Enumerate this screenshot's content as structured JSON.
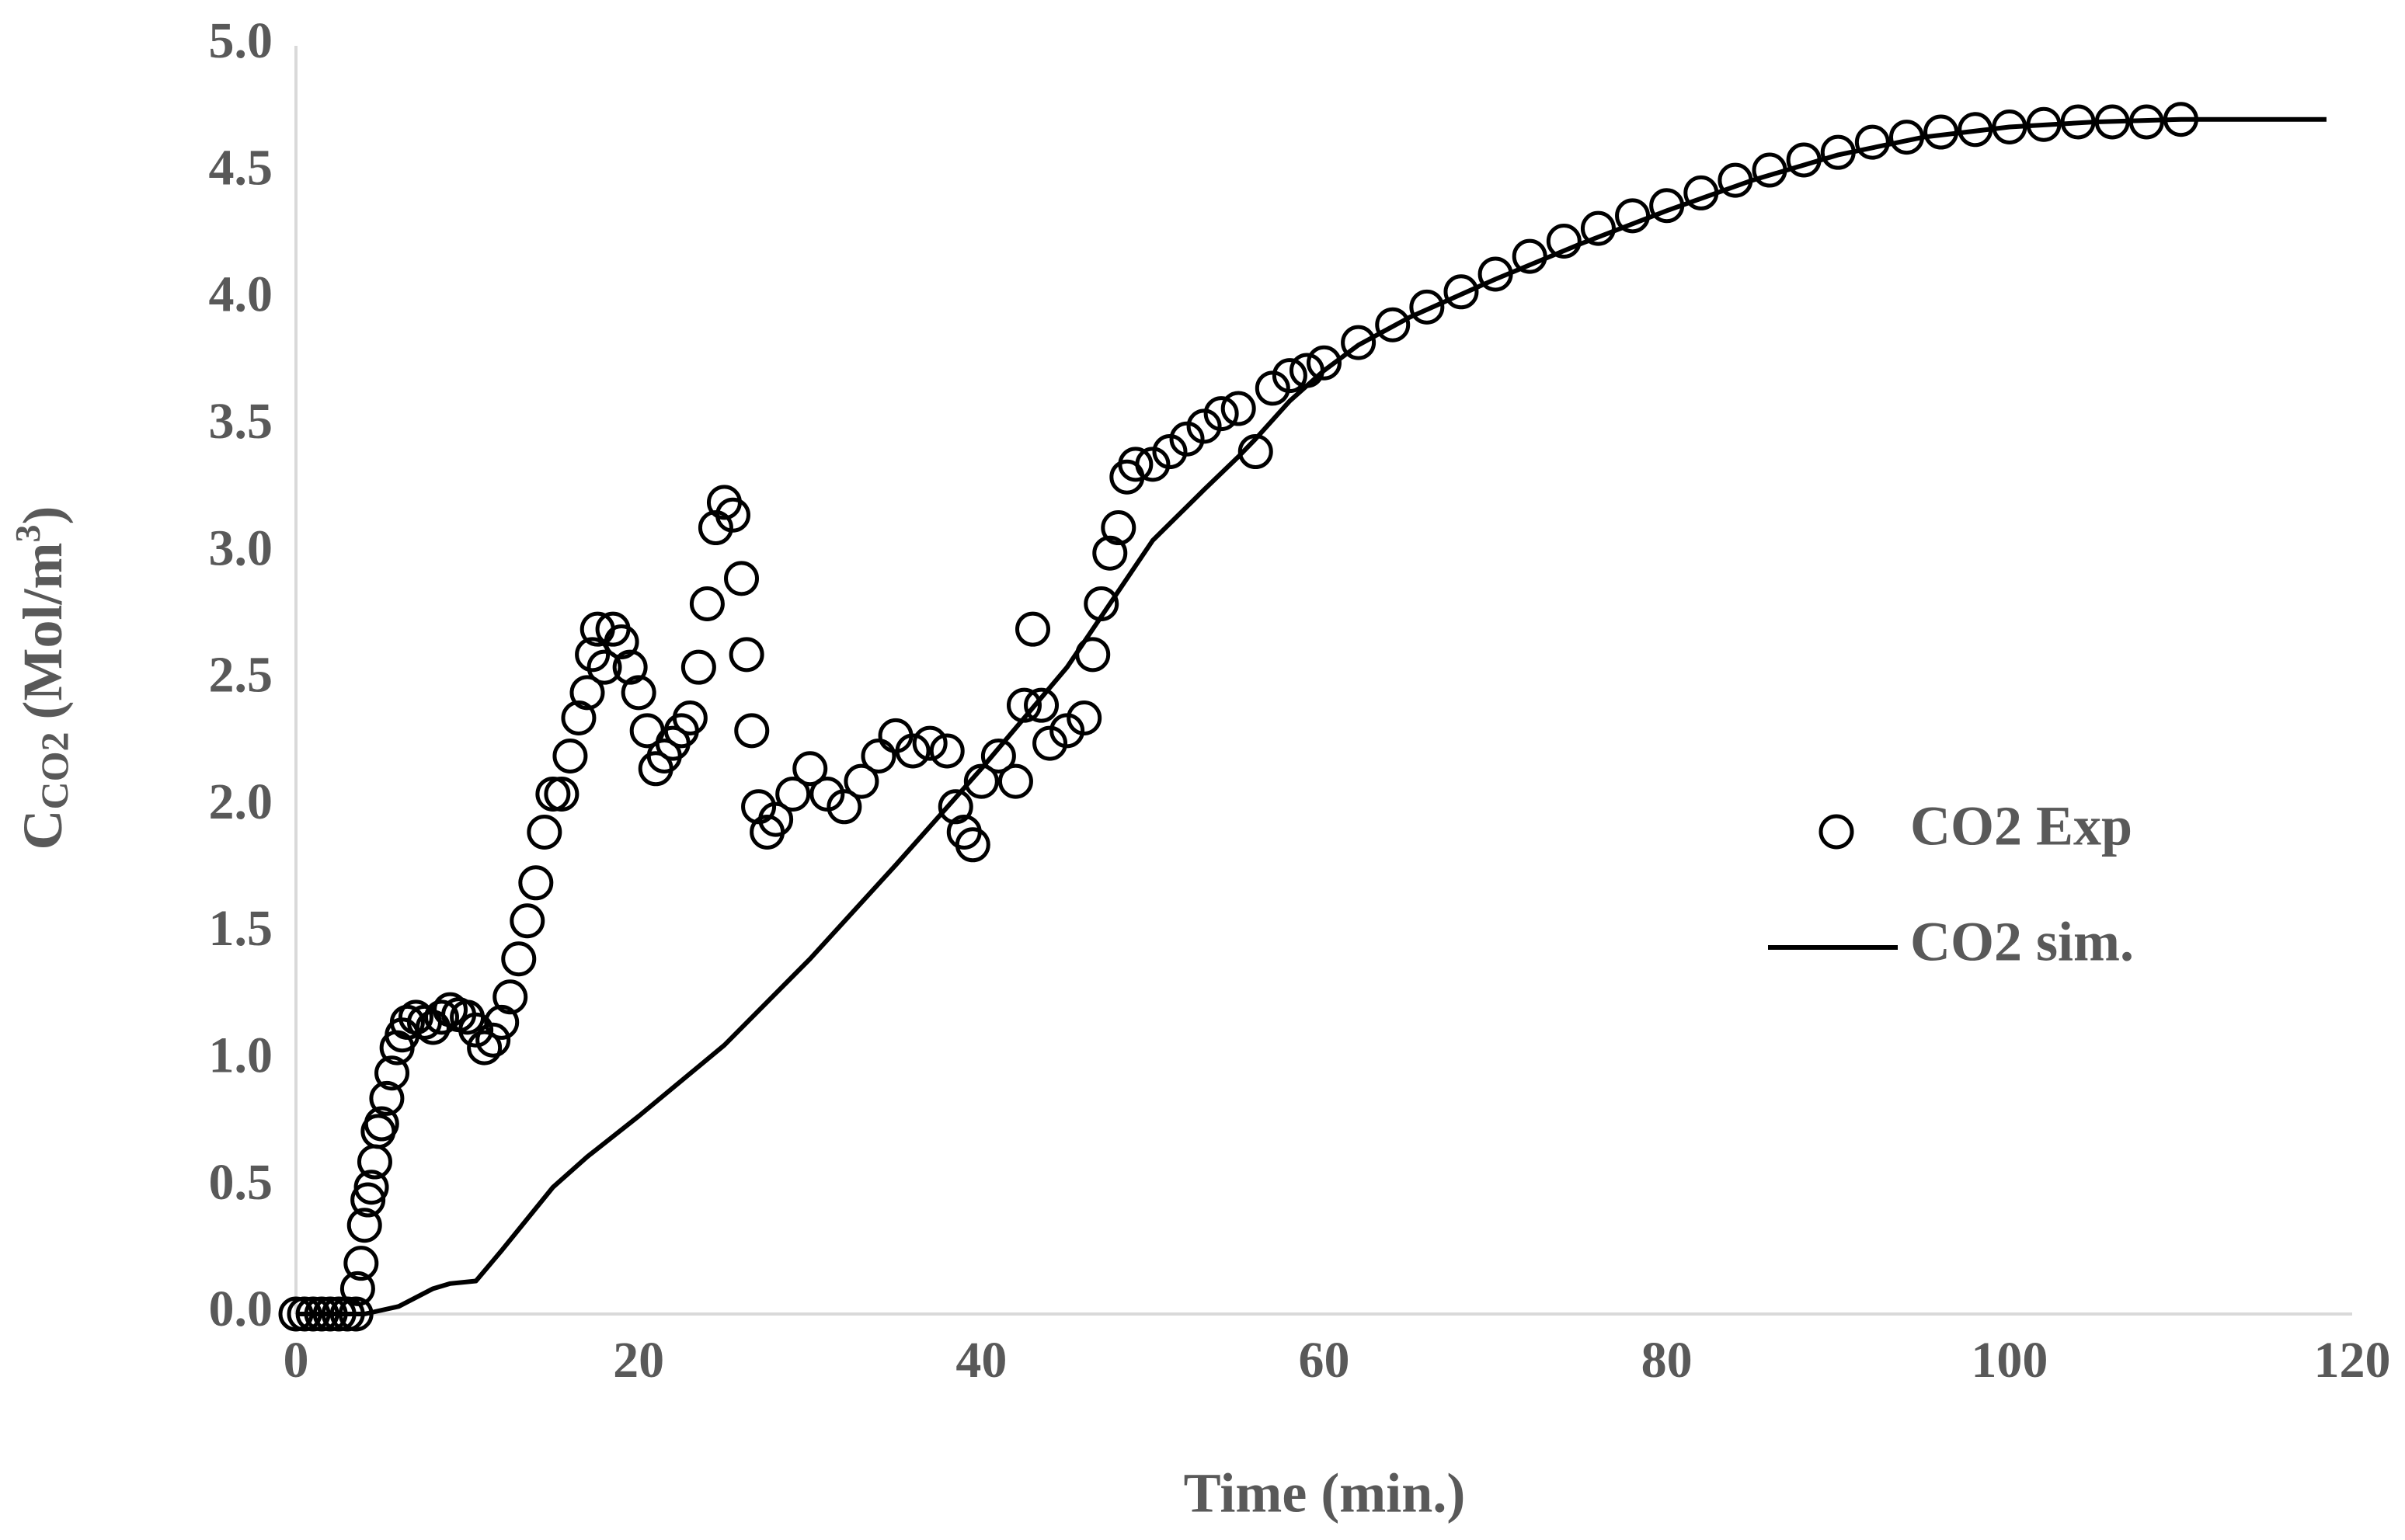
{
  "chart_data": {
    "type": "scatter",
    "x_label": "Time (min.)",
    "y_label": {
      "base": "C",
      "sub": "CO2",
      "unit": "(Mol/m",
      "sup": "3",
      "end": ")"
    },
    "xlim": [
      0,
      120
    ],
    "xticks": [
      0,
      20,
      40,
      60,
      80,
      100,
      120
    ],
    "ylim": [
      0,
      5
    ],
    "yticks": [
      {
        "value": 0,
        "label": "0.0"
      },
      {
        "value": 0.5,
        "label": "0.5"
      },
      {
        "value": 1,
        "label": "1.0"
      },
      {
        "value": 1.5,
        "label": "1.5"
      },
      {
        "value": 2,
        "label": "2.0"
      },
      {
        "value": 2.5,
        "label": "2.5"
      },
      {
        "value": 3,
        "label": "3.0"
      },
      {
        "value": 3.5,
        "label": "3.5"
      },
      {
        "value": 4,
        "label": "4.0"
      },
      {
        "value": 4.5,
        "label": "4.5"
      },
      {
        "value": 5,
        "label": "5.0"
      }
    ],
    "grid": false,
    "series": [
      {
        "name": "CO2 Exp",
        "type": "scatter",
        "color": "#000000",
        "x": [
          0,
          0.5,
          1,
          1.5,
          2,
          2.5,
          3,
          3.5,
          3.6,
          3.8,
          4.0,
          4.2,
          4.4,
          4.6,
          4.8,
          5.0,
          5.3,
          5.6,
          5.9,
          6.2,
          6.5,
          7,
          7.5,
          8,
          8.5,
          9,
          9.5,
          10,
          10.5,
          11,
          11.5,
          12,
          12.5,
          13,
          13.5,
          14,
          14.5,
          15,
          15.5,
          16,
          16.5,
          17,
          17.3,
          17.6,
          18,
          18.5,
          19,
          19.5,
          20,
          20.5,
          21,
          21.5,
          22,
          22.5,
          23,
          23.5,
          24,
          24.5,
          25,
          25.5,
          26,
          26.3,
          26.6,
          27,
          27.5,
          28,
          29,
          30,
          31,
          32,
          33,
          34,
          35,
          36,
          37,
          38,
          38.5,
          39,
          39.5,
          40,
          41,
          42,
          42.5,
          43,
          43.5,
          44,
          45,
          46,
          46.5,
          47,
          47.5,
          48,
          48.5,
          49,
          50,
          51,
          52,
          53,
          54,
          55,
          56,
          57,
          58,
          59,
          60,
          62,
          64,
          66,
          68,
          70,
          72,
          74,
          76,
          78,
          80,
          82,
          84,
          86,
          88,
          90,
          92,
          94,
          96,
          98,
          100,
          102,
          104,
          106,
          108,
          110
        ],
        "values": [
          0,
          0,
          0,
          0,
          0,
          0,
          0,
          0,
          0.1,
          0.2,
          0.35,
          0.45,
          0.5,
          0.6,
          0.72,
          0.75,
          0.85,
          0.95,
          1.05,
          1.1,
          1.15,
          1.17,
          1.15,
          1.13,
          1.17,
          1.2,
          1.18,
          1.17,
          1.12,
          1.05,
          1.08,
          1.15,
          1.25,
          1.4,
          1.55,
          1.7,
          1.9,
          2.05,
          2.05,
          2.2,
          2.35,
          2.45,
          2.6,
          2.7,
          2.55,
          2.7,
          2.65,
          2.55,
          2.45,
          2.3,
          2.15,
          2.2,
          2.25,
          2.3,
          2.35,
          2.55,
          2.8,
          3.1,
          3.2,
          3.15,
          2.9,
          2.6,
          2.3,
          2.0,
          1.9,
          1.95,
          2.05,
          2.15,
          2.05,
          2.0,
          2.1,
          2.2,
          2.28,
          2.22,
          2.25,
          2.22,
          2.0,
          1.9,
          1.85,
          2.1,
          2.2,
          2.1,
          2.4,
          2.7,
          2.4,
          2.25,
          2.3,
          2.35,
          2.6,
          2.8,
          3.0,
          3.1,
          3.3,
          3.35,
          3.35,
          3.4,
          3.45,
          3.5,
          3.55,
          3.57,
          3.4,
          3.65,
          3.7,
          3.72,
          3.75,
          3.83,
          3.9,
          3.97,
          4.03,
          4.1,
          4.17,
          4.23,
          4.28,
          4.33,
          4.37,
          4.42,
          4.47,
          4.51,
          4.55,
          4.58,
          4.62,
          4.64,
          4.66,
          4.67,
          4.68,
          4.69,
          4.7,
          4.7,
          4.7,
          4.71
        ]
      },
      {
        "name": "CO2 sim.",
        "type": "line",
        "color": "#000000",
        "x": [
          0,
          3,
          4,
          6,
          8,
          9,
          10.5,
          12,
          15,
          17,
          20,
          25,
          30,
          35,
          40,
          45,
          48,
          50,
          53,
          55,
          56,
          58,
          60,
          62,
          65,
          70,
          75,
          80,
          85,
          90,
          95,
          100,
          105,
          110,
          118.5
        ],
        "values": [
          0,
          0,
          0,
          0.03,
          0.1,
          0.12,
          0.13,
          0.25,
          0.5,
          0.62,
          0.78,
          1.06,
          1.4,
          1.77,
          2.15,
          2.55,
          2.85,
          3.05,
          3.25,
          3.38,
          3.45,
          3.6,
          3.72,
          3.82,
          3.93,
          4.08,
          4.22,
          4.35,
          4.47,
          4.57,
          4.64,
          4.68,
          4.7,
          4.71,
          4.71
        ]
      }
    ]
  }
}
